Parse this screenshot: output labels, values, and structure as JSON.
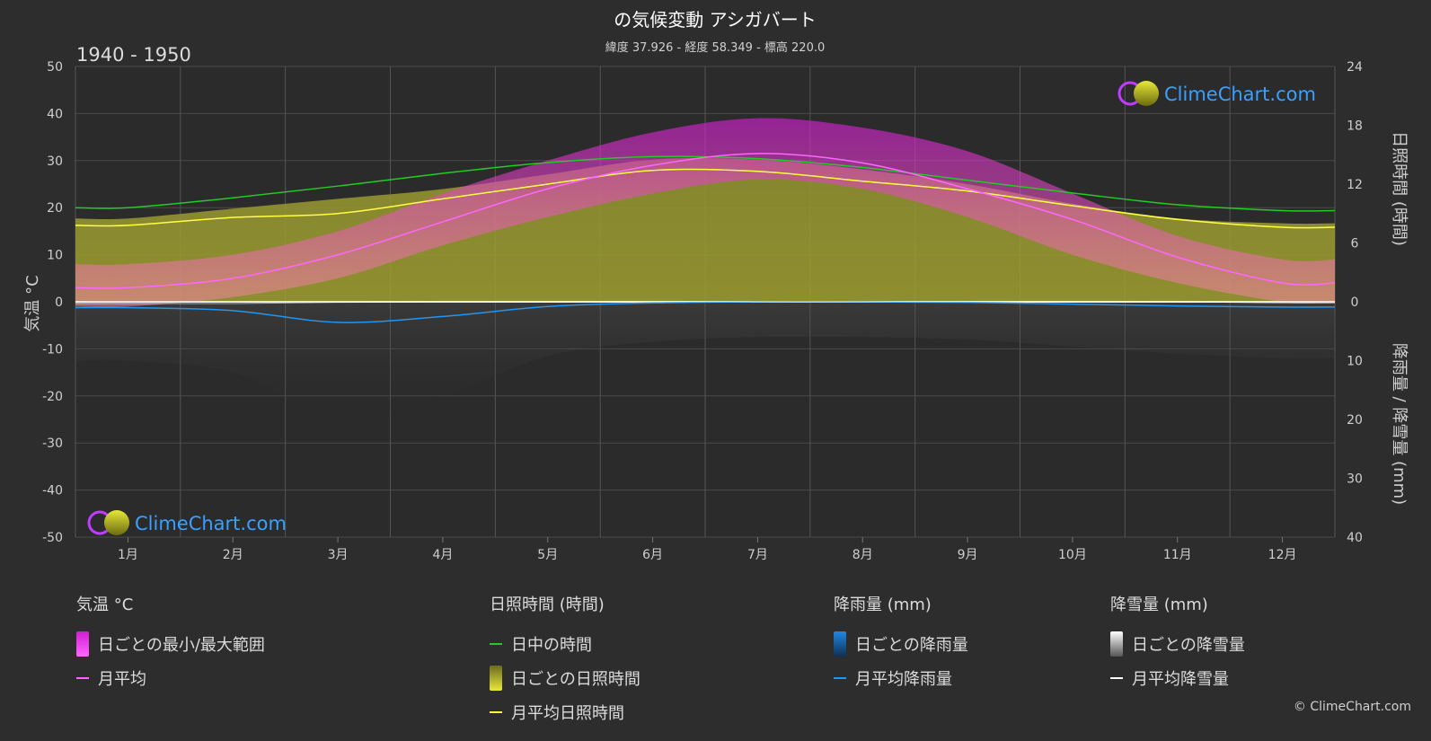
{
  "header": {
    "title": "の気候変動 アシガバート",
    "subtitle": "緯度 37.926 - 経度 58.349 - 標高 220.0",
    "period": "1940 - 1950"
  },
  "brand": {
    "name": "ClimeChart.com",
    "copyright": "© ClimeChart.com"
  },
  "colors": {
    "background": "#2d2d2d",
    "temp_range": "#d21ed2",
    "temp_avg": "#ff66ff",
    "daylight": "#22cc22",
    "sunshine_fill": "#9a9a2a",
    "sunshine_avg": "#ffff44",
    "rain": "#1e88e5",
    "rain_avg": "#2196f3",
    "snow": "#cccccc",
    "snow_avg": "#ffffff"
  },
  "chart_data": {
    "type": "area",
    "categories": [
      "1月",
      "2月",
      "3月",
      "4月",
      "5月",
      "6月",
      "7月",
      "8月",
      "9月",
      "10月",
      "11月",
      "12月"
    ],
    "left_axis": {
      "label": "気温 °C",
      "min": -50,
      "max": 50,
      "ticks": [
        "50",
        "40",
        "30",
        "20",
        "10",
        "0",
        "-10",
        "-20",
        "-30",
        "-40",
        "-50"
      ]
    },
    "right_axis_top": {
      "label": "日照時間 (時間)",
      "min": 0,
      "max": 24,
      "ticks": [
        "24",
        "18",
        "12",
        "6",
        "0"
      ]
    },
    "right_axis_bottom": {
      "label": "降雨量 / 降雪量 (mm)",
      "min": 0,
      "max": 40,
      "ticks": [
        "10",
        "20",
        "30",
        "40"
      ]
    },
    "series": [
      {
        "name": "日ごとの最小/最大範囲",
        "min": [
          -1,
          1,
          5,
          12,
          18,
          23,
          26,
          24,
          18,
          10,
          4,
          0
        ],
        "max": [
          8,
          10,
          15,
          23,
          30,
          36,
          39,
          37,
          32,
          23,
          14,
          9
        ]
      },
      {
        "name": "月平均",
        "values": [
          3,
          5,
          10,
          17,
          24,
          29,
          31.5,
          29.5,
          24,
          17.5,
          9.5,
          4
        ]
      },
      {
        "name": "日中の時間",
        "values": [
          9.6,
          10.6,
          11.8,
          13.1,
          14.2,
          14.8,
          14.6,
          13.7,
          12.4,
          11.1,
          9.9,
          9.3
        ]
      },
      {
        "name": "日ごとの日照時間",
        "values": [
          8.5,
          9.5,
          10.5,
          11.5,
          13,
          14.5,
          14.5,
          13.5,
          12,
          10,
          8.5,
          8
        ]
      },
      {
        "name": "月平均日照時間",
        "values": [
          7.8,
          8.6,
          9.0,
          10.5,
          12.0,
          13.4,
          13.3,
          12.3,
          11.3,
          9.8,
          8.4,
          7.6
        ]
      },
      {
        "name": "月平均降雨量",
        "values": [
          1.0,
          1.5,
          3.5,
          2.5,
          0.8,
          0.2,
          0.0,
          0.0,
          0.1,
          0.4,
          0.7,
          0.9
        ]
      },
      {
        "name": "月平均降雪量",
        "values": [
          0.3,
          0.3,
          0.1,
          0,
          0,
          0,
          0,
          0,
          0,
          0,
          0,
          0.2
        ]
      }
    ]
  },
  "legend": {
    "temp": {
      "header": "気温 °C",
      "range": "日ごとの最小/最大範囲",
      "avg": "月平均"
    },
    "sun": {
      "header": "日照時間 (時間)",
      "daylight": "日中の時間",
      "daily": "日ごとの日照時間",
      "avg": "月平均日照時間"
    },
    "rain": {
      "header": "降雨量 (mm)",
      "daily": "日ごとの降雨量",
      "avg": "月平均降雨量"
    },
    "snow": {
      "header": "降雪量 (mm)",
      "daily": "日ごとの降雪量",
      "avg": "月平均降雪量"
    }
  }
}
